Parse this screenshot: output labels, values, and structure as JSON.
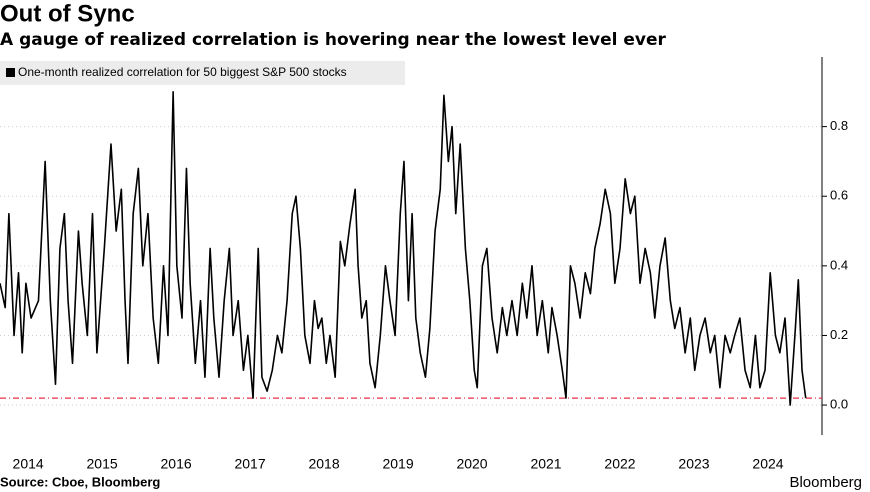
{
  "chart_data": {
    "type": "line",
    "title": "Out of Sync",
    "subtitle": "A gauge of realized correlation is hovering near the lowest level ever",
    "source": "Source: Cboe, Bloomberg",
    "brand": "Bloomberg",
    "x": [
      2014.12,
      2014.19,
      2014.24,
      2014.31,
      2014.37,
      2014.42,
      2014.47,
      2014.54,
      2014.64,
      2014.73,
      2014.8,
      2014.87,
      2014.93,
      2014.99,
      2015.04,
      2015.1,
      2015.18,
      2015.23,
      2015.3,
      2015.37,
      2015.43,
      2015.53,
      2015.62,
      2015.69,
      2015.76,
      2015.81,
      2015.85,
      2015.92,
      2015.99,
      2016.05,
      2016.12,
      2016.19,
      2016.26,
      2016.33,
      2016.39,
      2016.46,
      2016.51,
      2016.58,
      2016.64,
      2016.69,
      2016.76,
      2016.83,
      2016.89,
      2016.96,
      2017.01,
      2017.08,
      2017.15,
      2017.22,
      2017.27,
      2017.34,
      2017.41,
      2017.47,
      2017.54,
      2017.61,
      2017.66,
      2017.73,
      2017.8,
      2017.87,
      2017.93,
      2018.0,
      2018.07,
      2018.12,
      2018.18,
      2018.24,
      2018.31,
      2018.37,
      2018.42,
      2018.47,
      2018.53,
      2018.58,
      2018.65,
      2018.72,
      2018.78,
      2018.85,
      2018.92,
      2018.96,
      2019.01,
      2019.07,
      2019.12,
      2019.19,
      2019.26,
      2019.33,
      2019.39,
      2019.46,
      2019.53,
      2019.58,
      2019.64,
      2019.69,
      2019.74,
      2019.8,
      2019.87,
      2019.93,
      2020.0,
      2020.07,
      2020.12,
      2020.18,
      2020.23,
      2020.28,
      2020.34,
      2020.41,
      2020.47,
      2020.53,
      2020.57,
      2020.64,
      2020.7,
      2020.77,
      2020.84,
      2020.91,
      2020.97,
      2021.04,
      2021.11,
      2021.18,
      2021.24,
      2021.31,
      2021.38,
      2021.45,
      2021.53,
      2021.58,
      2021.65,
      2021.72,
      2021.77,
      2021.83,
      2021.89,
      2021.96,
      2022.03,
      2022.1,
      2022.16,
      2022.23,
      2022.3,
      2022.37,
      2022.43,
      2022.5,
      2022.57,
      2022.64,
      2022.7,
      2022.77,
      2022.84,
      2022.91,
      2022.97,
      2023.04,
      2023.11,
      2023.18,
      2023.24,
      2023.31,
      2023.38,
      2023.45,
      2023.51,
      2023.58,
      2023.65,
      2023.72,
      2023.78,
      2023.85,
      2023.92,
      2023.99,
      2024.05,
      2024.12,
      2024.19,
      2024.26,
      2024.33,
      2024.39,
      2024.46,
      2024.53,
      2024.6,
      2024.66,
      2024.73,
      2024.8,
      2024.87,
      2024.91,
      2024.96,
      2025.01
    ],
    "series": [
      {
        "name": "One-month realized correlation for 50 biggest S&P 500 stocks",
        "color": "#000000",
        "values": [
          0.35,
          0.28,
          0.55,
          0.2,
          0.38,
          0.15,
          0.35,
          0.25,
          0.3,
          0.7,
          0.3,
          0.06,
          0.45,
          0.55,
          0.3,
          0.12,
          0.5,
          0.35,
          0.2,
          0.55,
          0.15,
          0.45,
          0.75,
          0.5,
          0.62,
          0.3,
          0.12,
          0.55,
          0.68,
          0.4,
          0.55,
          0.25,
          0.12,
          0.4,
          0.2,
          0.9,
          0.4,
          0.25,
          0.68,
          0.35,
          0.12,
          0.3,
          0.08,
          0.45,
          0.25,
          0.08,
          0.3,
          0.45,
          0.2,
          0.3,
          0.1,
          0.2,
          0.02,
          0.45,
          0.08,
          0.04,
          0.1,
          0.2,
          0.15,
          0.3,
          0.55,
          0.6,
          0.45,
          0.2,
          0.12,
          0.3,
          0.22,
          0.25,
          0.12,
          0.2,
          0.08,
          0.47,
          0.4,
          0.52,
          0.62,
          0.4,
          0.25,
          0.3,
          0.12,
          0.05,
          0.2,
          0.4,
          0.3,
          0.2,
          0.55,
          0.7,
          0.3,
          0.55,
          0.25,
          0.15,
          0.08,
          0.22,
          0.5,
          0.62,
          0.89,
          0.7,
          0.8,
          0.55,
          0.75,
          0.45,
          0.3,
          0.1,
          0.05,
          0.4,
          0.45,
          0.25,
          0.15,
          0.28,
          0.2,
          0.3,
          0.2,
          0.35,
          0.25,
          0.4,
          0.2,
          0.3,
          0.15,
          0.28,
          0.2,
          0.1,
          0.02,
          0.4,
          0.35,
          0.25,
          0.38,
          0.32,
          0.45,
          0.52,
          0.62,
          0.55,
          0.35,
          0.45,
          0.65,
          0.55,
          0.6,
          0.35,
          0.45,
          0.38,
          0.25,
          0.4,
          0.48,
          0.3,
          0.22,
          0.28,
          0.15,
          0.25,
          0.1,
          0.2,
          0.25,
          0.15,
          0.2,
          0.05,
          0.2,
          0.15,
          0.2,
          0.25,
          0.1,
          0.05,
          0.2,
          0.05,
          0.1,
          0.38,
          0.2,
          0.15,
          0.25,
          0.0,
          0.22,
          0.36,
          0.1,
          0.02
        ]
      }
    ],
    "reference_line": {
      "value": 0.02,
      "color": "#e8304a"
    },
    "xlim": [
      2014.12,
      2025.23
    ],
    "xticks": [
      {
        "value": 2014.5,
        "label": "2014"
      },
      {
        "value": 2015.5,
        "label": "2015"
      },
      {
        "value": 2016.5,
        "label": "2016"
      },
      {
        "value": 2017.5,
        "label": "2017"
      },
      {
        "value": 2018.5,
        "label": "2018"
      },
      {
        "value": 2019.5,
        "label": "2019"
      },
      {
        "value": 2020.5,
        "label": "2020"
      },
      {
        "value": 2021.5,
        "label": "2021"
      },
      {
        "value": 2022.5,
        "label": "2022"
      },
      {
        "value": 2023.5,
        "label": "2023"
      },
      {
        "value": 2024.5,
        "label": "2024"
      }
    ],
    "ylim": [
      -0.086,
      1.0
    ],
    "yticks": [
      {
        "value": 0,
        "label": "0.0"
      },
      0.2,
      0.4,
      0.6,
      0.8
    ],
    "grid": true
  }
}
